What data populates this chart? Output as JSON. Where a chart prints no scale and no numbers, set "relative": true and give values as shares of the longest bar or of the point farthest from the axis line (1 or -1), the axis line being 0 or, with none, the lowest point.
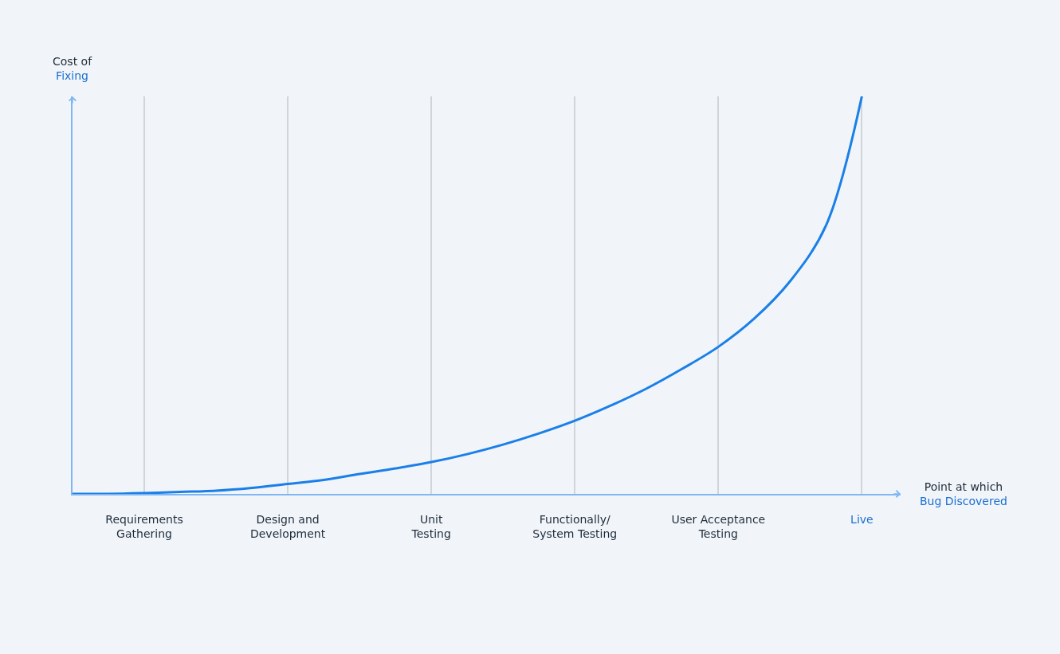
{
  "chart_data": {
    "type": "line",
    "xlabel": "Point at which\nBug Discovered",
    "ylabel": "Cost of\nFixing",
    "categories": [
      null,
      null,
      "Requirements Gathering",
      null,
      null,
      null,
      "Design and Development",
      null,
      null,
      null,
      "Unit Testing",
      null,
      null,
      null,
      "Functionally/System Testing",
      null,
      null,
      null,
      "User Acceptance Testing",
      null,
      null,
      null,
      "Live"
    ],
    "series": [
      {
        "color": "#1a7fe8",
        "values": [
          0,
          0,
          0.002,
          0.005,
          0.008,
          0.015,
          0.025,
          0.035,
          0.05,
          0.064,
          0.08,
          0.1,
          0.124,
          0.152,
          0.184,
          0.222,
          0.265,
          0.315,
          0.37,
          0.441,
          0.535,
          0.675,
          1
        ]
      }
    ],
    "relative": true,
    "grid": "x",
    "marker": "none",
    "line_style": "solid"
  }
}
